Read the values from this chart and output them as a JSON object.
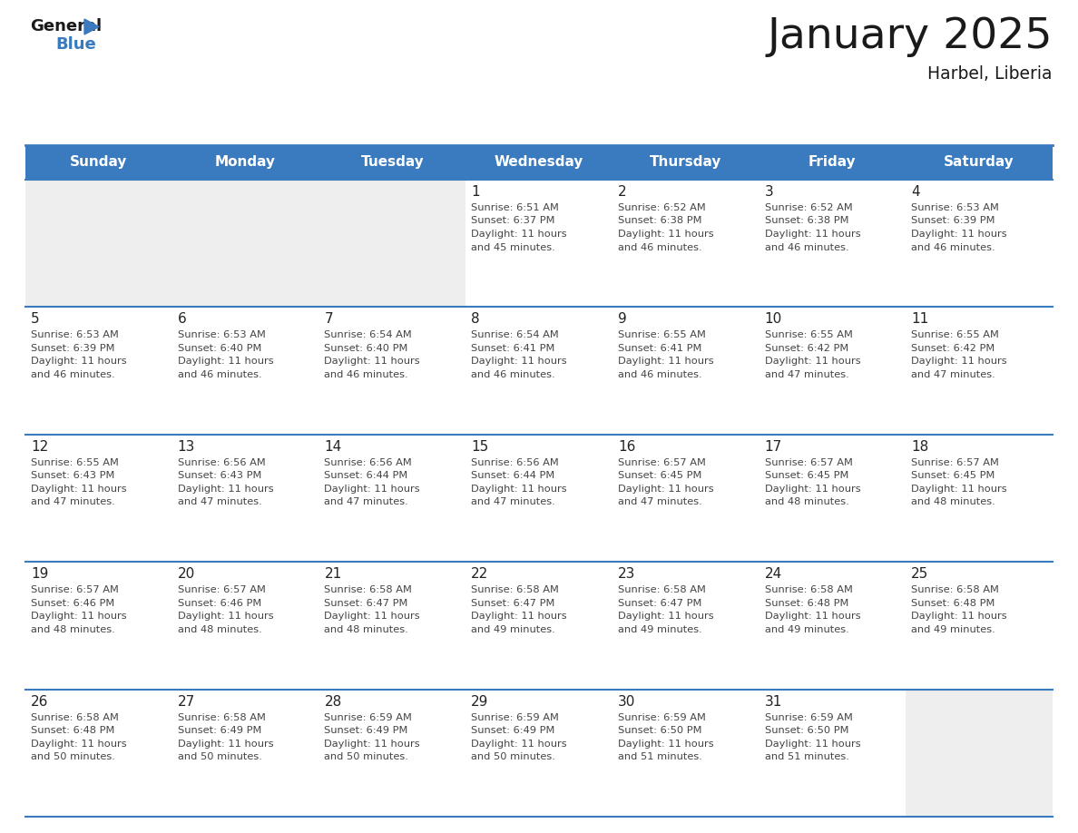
{
  "title": "January 2025",
  "subtitle": "Harbel, Liberia",
  "days_of_week": [
    "Sunday",
    "Monday",
    "Tuesday",
    "Wednesday",
    "Thursday",
    "Friday",
    "Saturday"
  ],
  "header_bg": "#3a7abf",
  "header_text_color": "#ffffff",
  "cell_bg_empty": "#eeeeee",
  "cell_bg_normal": "#ffffff",
  "row_bg_alt": "#f5f5f5",
  "grid_line_color": "#3a7abf",
  "sep_line_color": "#b0c4de",
  "text_color": "#333333",
  "day_num_color": "#222222",
  "title_color": "#1a1a1a",
  "calendar_data": [
    [
      {
        "day": null,
        "sunrise": null,
        "sunset": null,
        "daylight": null
      },
      {
        "day": null,
        "sunrise": null,
        "sunset": null,
        "daylight": null
      },
      {
        "day": null,
        "sunrise": null,
        "sunset": null,
        "daylight": null
      },
      {
        "day": 1,
        "sunrise": "6:51 AM",
        "sunset": "6:37 PM",
        "daylight": "11 hours and 45 minutes."
      },
      {
        "day": 2,
        "sunrise": "6:52 AM",
        "sunset": "6:38 PM",
        "daylight": "11 hours and 46 minutes."
      },
      {
        "day": 3,
        "sunrise": "6:52 AM",
        "sunset": "6:38 PM",
        "daylight": "11 hours and 46 minutes."
      },
      {
        "day": 4,
        "sunrise": "6:53 AM",
        "sunset": "6:39 PM",
        "daylight": "11 hours and 46 minutes."
      }
    ],
    [
      {
        "day": 5,
        "sunrise": "6:53 AM",
        "sunset": "6:39 PM",
        "daylight": "11 hours and 46 minutes."
      },
      {
        "day": 6,
        "sunrise": "6:53 AM",
        "sunset": "6:40 PM",
        "daylight": "11 hours and 46 minutes."
      },
      {
        "day": 7,
        "sunrise": "6:54 AM",
        "sunset": "6:40 PM",
        "daylight": "11 hours and 46 minutes."
      },
      {
        "day": 8,
        "sunrise": "6:54 AM",
        "sunset": "6:41 PM",
        "daylight": "11 hours and 46 minutes."
      },
      {
        "day": 9,
        "sunrise": "6:55 AM",
        "sunset": "6:41 PM",
        "daylight": "11 hours and 46 minutes."
      },
      {
        "day": 10,
        "sunrise": "6:55 AM",
        "sunset": "6:42 PM",
        "daylight": "11 hours and 47 minutes."
      },
      {
        "day": 11,
        "sunrise": "6:55 AM",
        "sunset": "6:42 PM",
        "daylight": "11 hours and 47 minutes."
      }
    ],
    [
      {
        "day": 12,
        "sunrise": "6:55 AM",
        "sunset": "6:43 PM",
        "daylight": "11 hours and 47 minutes."
      },
      {
        "day": 13,
        "sunrise": "6:56 AM",
        "sunset": "6:43 PM",
        "daylight": "11 hours and 47 minutes."
      },
      {
        "day": 14,
        "sunrise": "6:56 AM",
        "sunset": "6:44 PM",
        "daylight": "11 hours and 47 minutes."
      },
      {
        "day": 15,
        "sunrise": "6:56 AM",
        "sunset": "6:44 PM",
        "daylight": "11 hours and 47 minutes."
      },
      {
        "day": 16,
        "sunrise": "6:57 AM",
        "sunset": "6:45 PM",
        "daylight": "11 hours and 47 minutes."
      },
      {
        "day": 17,
        "sunrise": "6:57 AM",
        "sunset": "6:45 PM",
        "daylight": "11 hours and 48 minutes."
      },
      {
        "day": 18,
        "sunrise": "6:57 AM",
        "sunset": "6:45 PM",
        "daylight": "11 hours and 48 minutes."
      }
    ],
    [
      {
        "day": 19,
        "sunrise": "6:57 AM",
        "sunset": "6:46 PM",
        "daylight": "11 hours and 48 minutes."
      },
      {
        "day": 20,
        "sunrise": "6:57 AM",
        "sunset": "6:46 PM",
        "daylight": "11 hours and 48 minutes."
      },
      {
        "day": 21,
        "sunrise": "6:58 AM",
        "sunset": "6:47 PM",
        "daylight": "11 hours and 48 minutes."
      },
      {
        "day": 22,
        "sunrise": "6:58 AM",
        "sunset": "6:47 PM",
        "daylight": "11 hours and 49 minutes."
      },
      {
        "day": 23,
        "sunrise": "6:58 AM",
        "sunset": "6:47 PM",
        "daylight": "11 hours and 49 minutes."
      },
      {
        "day": 24,
        "sunrise": "6:58 AM",
        "sunset": "6:48 PM",
        "daylight": "11 hours and 49 minutes."
      },
      {
        "day": 25,
        "sunrise": "6:58 AM",
        "sunset": "6:48 PM",
        "daylight": "11 hours and 49 minutes."
      }
    ],
    [
      {
        "day": 26,
        "sunrise": "6:58 AM",
        "sunset": "6:48 PM",
        "daylight": "11 hours and 50 minutes."
      },
      {
        "day": 27,
        "sunrise": "6:58 AM",
        "sunset": "6:49 PM",
        "daylight": "11 hours and 50 minutes."
      },
      {
        "day": 28,
        "sunrise": "6:59 AM",
        "sunset": "6:49 PM",
        "daylight": "11 hours and 50 minutes."
      },
      {
        "day": 29,
        "sunrise": "6:59 AM",
        "sunset": "6:49 PM",
        "daylight": "11 hours and 50 minutes."
      },
      {
        "day": 30,
        "sunrise": "6:59 AM",
        "sunset": "6:50 PM",
        "daylight": "11 hours and 51 minutes."
      },
      {
        "day": 31,
        "sunrise": "6:59 AM",
        "sunset": "6:50 PM",
        "daylight": "11 hours and 51 minutes."
      },
      {
        "day": null,
        "sunrise": null,
        "sunset": null,
        "daylight": null
      }
    ]
  ]
}
